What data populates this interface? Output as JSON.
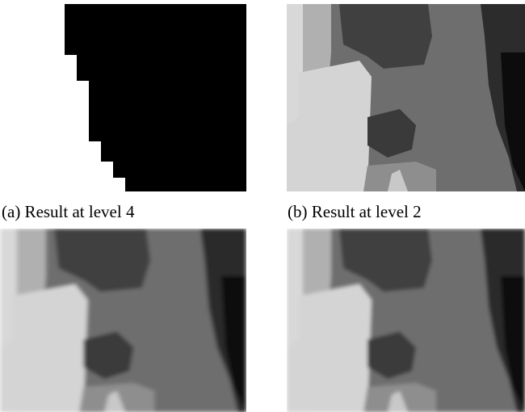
{
  "figure": {
    "panels": [
      {
        "caption": "(a) Result at level 4"
      },
      {
        "caption": "(b) Result at level 2"
      }
    ]
  }
}
